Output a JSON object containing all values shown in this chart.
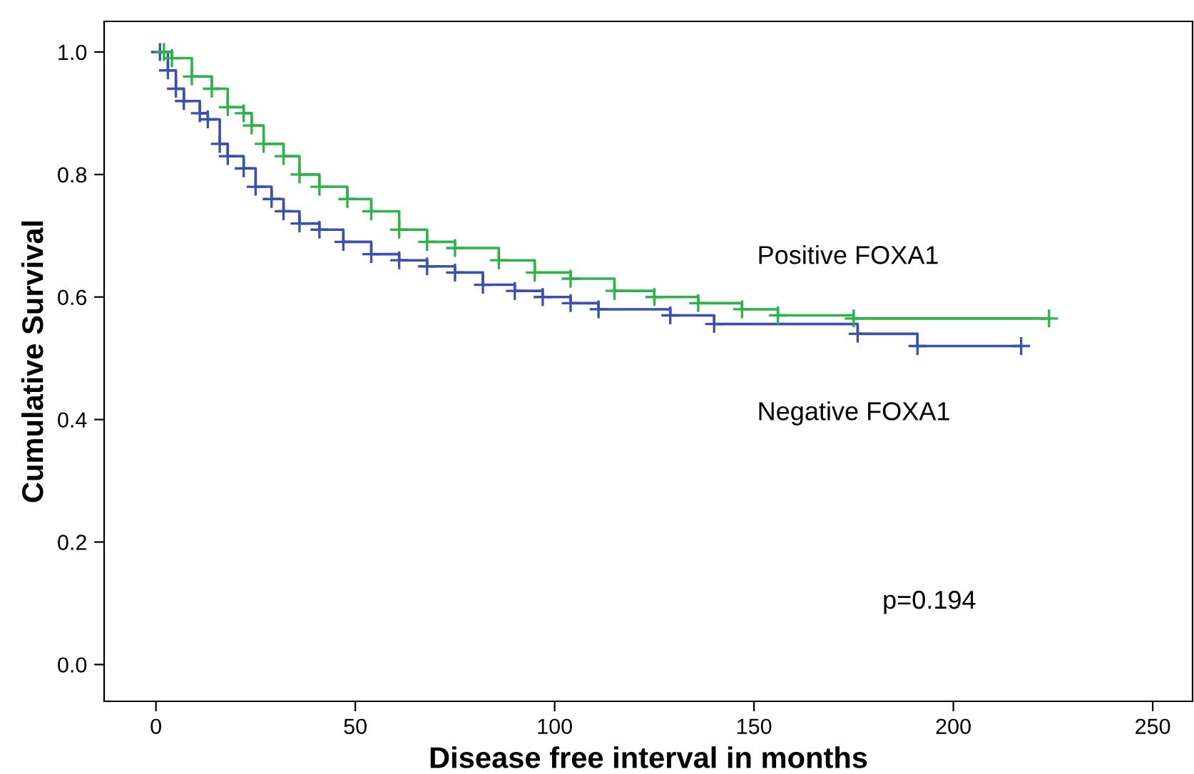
{
  "chart_data": {
    "type": "step",
    "xlabel": "Disease free interval in months",
    "ylabel": "Cumulative Survival",
    "xlim": [
      -13,
      260
    ],
    "ylim": [
      -0.06,
      1.05
    ],
    "xticks": [
      0,
      50,
      100,
      150,
      200,
      250
    ],
    "yticks": [
      {
        "value": 0,
        "label": "0.0"
      },
      {
        "value": 0.2,
        "label": "0.2"
      },
      {
        "value": 0.4,
        "label": "0.4"
      },
      {
        "value": 0.6,
        "label": "0.6"
      },
      {
        "value": 0.8,
        "label": "0.8"
      },
      {
        "value": 1,
        "label": "1.0"
      }
    ],
    "grid": false,
    "marker": "cross",
    "line_style": "solid",
    "annotations": [
      "p=0.194"
    ],
    "series": [
      {
        "name": "Positive FOXA1",
        "color": "#2db34a",
        "x": [
          2,
          4,
          9,
          14,
          18,
          22,
          24,
          27,
          32,
          36,
          41,
          48,
          54,
          61,
          68,
          75,
          86,
          95,
          104,
          115,
          125,
          136,
          147,
          156,
          175,
          224
        ],
        "values": [
          1.0,
          0.99,
          0.96,
          0.94,
          0.91,
          0.9,
          0.88,
          0.85,
          0.83,
          0.8,
          0.78,
          0.76,
          0.74,
          0.71,
          0.69,
          0.68,
          0.66,
          0.64,
          0.63,
          0.61,
          0.6,
          0.59,
          0.58,
          0.57,
          0.565,
          0.565
        ]
      },
      {
        "name": "Negative FOXA1",
        "color": "#3a4fb0",
        "x": [
          1,
          3,
          5,
          7,
          11,
          13,
          16,
          18,
          22,
          25,
          29,
          32,
          36,
          41,
          47,
          54,
          61,
          68,
          75,
          82,
          90,
          97,
          104,
          111,
          129,
          140,
          176,
          191,
          217
        ],
        "values": [
          1.0,
          0.97,
          0.94,
          0.92,
          0.9,
          0.89,
          0.85,
          0.83,
          0.81,
          0.78,
          0.76,
          0.74,
          0.72,
          0.71,
          0.69,
          0.67,
          0.66,
          0.65,
          0.64,
          0.62,
          0.61,
          0.6,
          0.59,
          0.58,
          0.57,
          0.556,
          0.54,
          0.52,
          0.52
        ]
      }
    ]
  }
}
